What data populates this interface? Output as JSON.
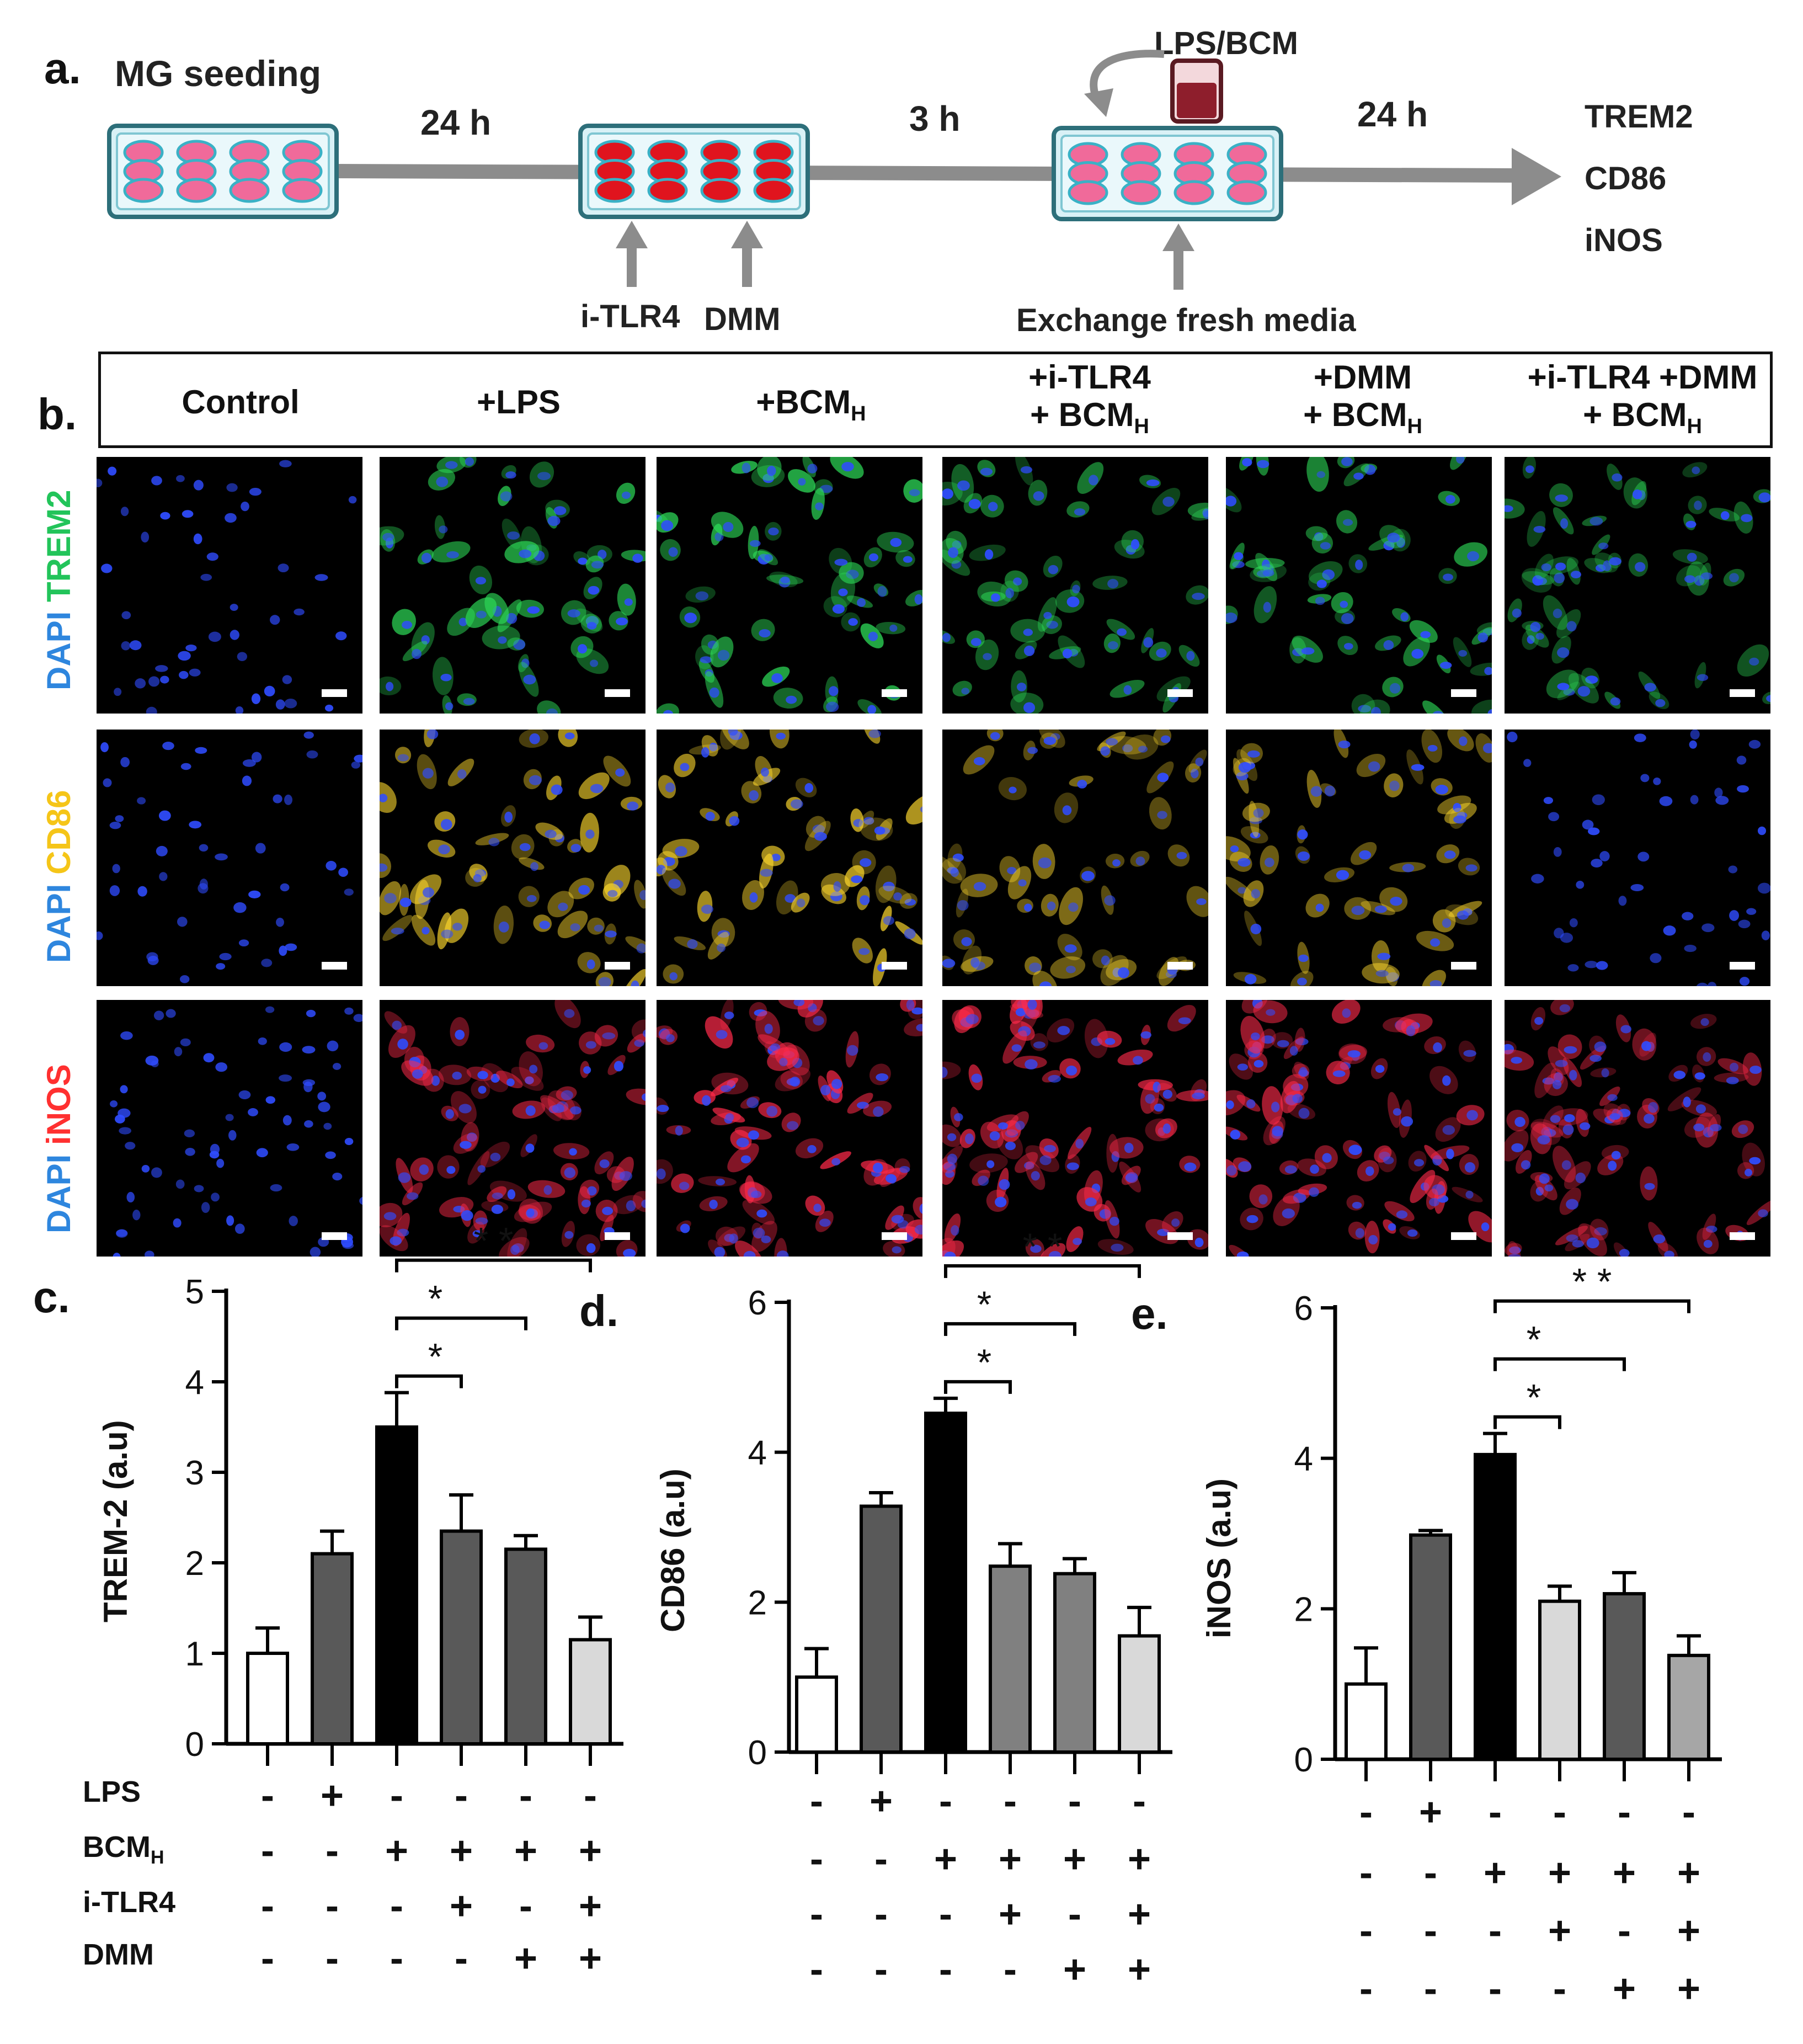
{
  "panel_a": {
    "label": "a.",
    "seeding": "MG seeding",
    "t1": "24 h",
    "t2": "3 h",
    "t3": "24 h",
    "lps_bcm": "LPS/BCM",
    "itlr4": "i-TLR4",
    "dmm": "DMM",
    "exchange": "Exchange fresh media",
    "markers": [
      "TREM2",
      "CD86",
      "iNOS"
    ],
    "well_colors": {
      "plate": "#d9f1f6",
      "pink": "#f06a9a",
      "red": "#e0141e",
      "edge": "#3ab1c6"
    },
    "arrow_color": "#8c8c8c",
    "seeding_color": "#f24b1a"
  },
  "panel_b": {
    "label": "b.",
    "columns": [
      {
        "l1": "Control",
        "l2": "",
        "sub": ""
      },
      {
        "l1": "+LPS",
        "l2": "",
        "sub": ""
      },
      {
        "l1": "+BCM",
        "l2": "",
        "sub": "H"
      },
      {
        "l1": "+i-TLR4",
        "l2": "+ BCM",
        "sub": "H"
      },
      {
        "l1": "+DMM",
        "l2": "+ BCM",
        "sub": "H"
      },
      {
        "l1": "+i-TLR4 +DMM",
        "l2": "+ BCM",
        "sub": "H"
      }
    ],
    "rows": [
      {
        "dapi": "DAPI",
        "marker": "TREM2",
        "marker_color": "#22c45a",
        "dapi_color": "#2e86de"
      },
      {
        "dapi": "DAPI",
        "marker": "CD86",
        "marker_color": "#f5c518",
        "dapi_color": "#2e86de"
      },
      {
        "dapi": "DAPI",
        "marker": "iNOS",
        "marker_color": "#ff3030",
        "dapi_color": "#2e86de"
      }
    ],
    "tile_icon": "fluorescence-micrograph"
  },
  "chart_data": [
    {
      "type": "bar",
      "panel": "c.",
      "ylabel": "TREM-2 (a.u)",
      "ylim": [
        0,
        5
      ],
      "yticks": [
        "0",
        "1",
        "2",
        "3",
        "4",
        "5"
      ],
      "values": [
        1.0,
        2.1,
        3.5,
        2.35,
        2.15,
        1.15
      ],
      "errors": [
        0.28,
        0.25,
        0.38,
        0.4,
        0.15,
        0.25
      ],
      "fills": [
        "#ffffff",
        "#595959",
        "#000000",
        "#595959",
        "#595959",
        "#d9d9d9"
      ],
      "significance": [
        {
          "from": 2,
          "to": 3,
          "label": "*"
        },
        {
          "from": 2,
          "to": 4,
          "label": "*"
        },
        {
          "from": 2,
          "to": 5,
          "label": "* *"
        }
      ]
    },
    {
      "type": "bar",
      "panel": "d.",
      "ylabel": "CD86 (a.u)",
      "ylim": [
        0,
        6
      ],
      "yticks": [
        "0",
        "2",
        "4",
        "6"
      ],
      "values": [
        1.0,
        3.28,
        4.52,
        2.48,
        2.38,
        1.55
      ],
      "errors": [
        0.38,
        0.18,
        0.2,
        0.3,
        0.2,
        0.38
      ],
      "fills": [
        "#ffffff",
        "#595959",
        "#000000",
        "#808080",
        "#808080",
        "#d9d9d9"
      ],
      "significance": [
        {
          "from": 2,
          "to": 3,
          "label": "*"
        },
        {
          "from": 2,
          "to": 4,
          "label": "*"
        },
        {
          "from": 2,
          "to": 5,
          "label": "* *"
        }
      ]
    },
    {
      "type": "bar",
      "panel": "e.",
      "ylabel": "iNOS (a.u)",
      "ylim": [
        0,
        6
      ],
      "yticks": [
        "0",
        "2",
        "4",
        "6"
      ],
      "values": [
        1.0,
        2.98,
        4.05,
        2.1,
        2.2,
        1.38
      ],
      "errors": [
        0.48,
        0.06,
        0.28,
        0.2,
        0.28,
        0.26
      ],
      "fills": [
        "#ffffff",
        "#595959",
        "#000000",
        "#d9d9d9",
        "#595959",
        "#a6a6a6"
      ],
      "significance": [
        {
          "from": 2,
          "to": 3,
          "label": "*"
        },
        {
          "from": 2,
          "to": 4,
          "label": "*"
        },
        {
          "from": 2,
          "to": 5,
          "label": "* *"
        }
      ]
    }
  ],
  "condition_table": {
    "rows": [
      {
        "label": "LPS",
        "sub": "",
        "signs": [
          "-",
          "+",
          "-",
          "-",
          "-",
          "-"
        ]
      },
      {
        "label": "BCM",
        "sub": "H",
        "signs": [
          "-",
          "-",
          "+",
          "+",
          "+",
          "+"
        ]
      },
      {
        "label": "i-TLR4",
        "sub": "",
        "signs": [
          "-",
          "-",
          "-",
          "+",
          "-",
          "+"
        ]
      },
      {
        "label": "DMM",
        "sub": "",
        "signs": [
          "-",
          "-",
          "-",
          "-",
          "+",
          "+"
        ]
      }
    ]
  }
}
